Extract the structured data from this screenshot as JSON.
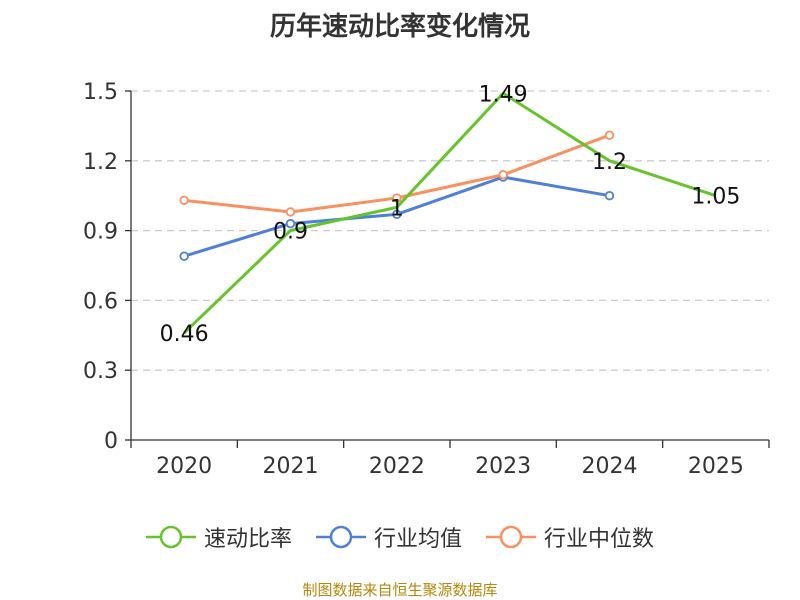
{
  "colors": {
    "series_速动比率": "#66c42b",
    "series_行业均值": "#4f80d9",
    "series_行业中位数": "#f89060",
    "axis": "#333333",
    "grid": "#cccccc"
  },
  "chart_data": {
    "type": "line",
    "title": "历年速动比率变化情况",
    "xlabel": "",
    "ylabel": "",
    "categories": [
      "2020",
      "2021",
      "2022",
      "2023",
      "2024",
      "2025"
    ],
    "ylim": [
      0,
      1.5
    ],
    "yticks": [
      "0",
      "0.3",
      "0.6",
      "0.9",
      "1.2",
      "1.5"
    ],
    "grid": true,
    "legend_position": "bottom",
    "series": [
      {
        "name": "速动比率",
        "values": [
          0.46,
          0.9,
          1.0,
          1.49,
          1.2,
          1.05
        ],
        "labels": [
          "0.46",
          "0.9",
          "1",
          "1.49",
          "1.2",
          "1.05"
        ],
        "show_markers": false,
        "show_labels": true
      },
      {
        "name": "行业均值",
        "values": [
          0.79,
          0.93,
          0.97,
          1.13,
          1.05,
          null
        ],
        "show_markers": true,
        "show_labels": false
      },
      {
        "name": "行业中位数",
        "values": [
          1.03,
          0.98,
          1.04,
          1.14,
          1.31,
          null
        ],
        "show_markers": true,
        "show_labels": false
      }
    ]
  },
  "footer": {
    "source": "制图数据来自恒生聚源数据库"
  }
}
